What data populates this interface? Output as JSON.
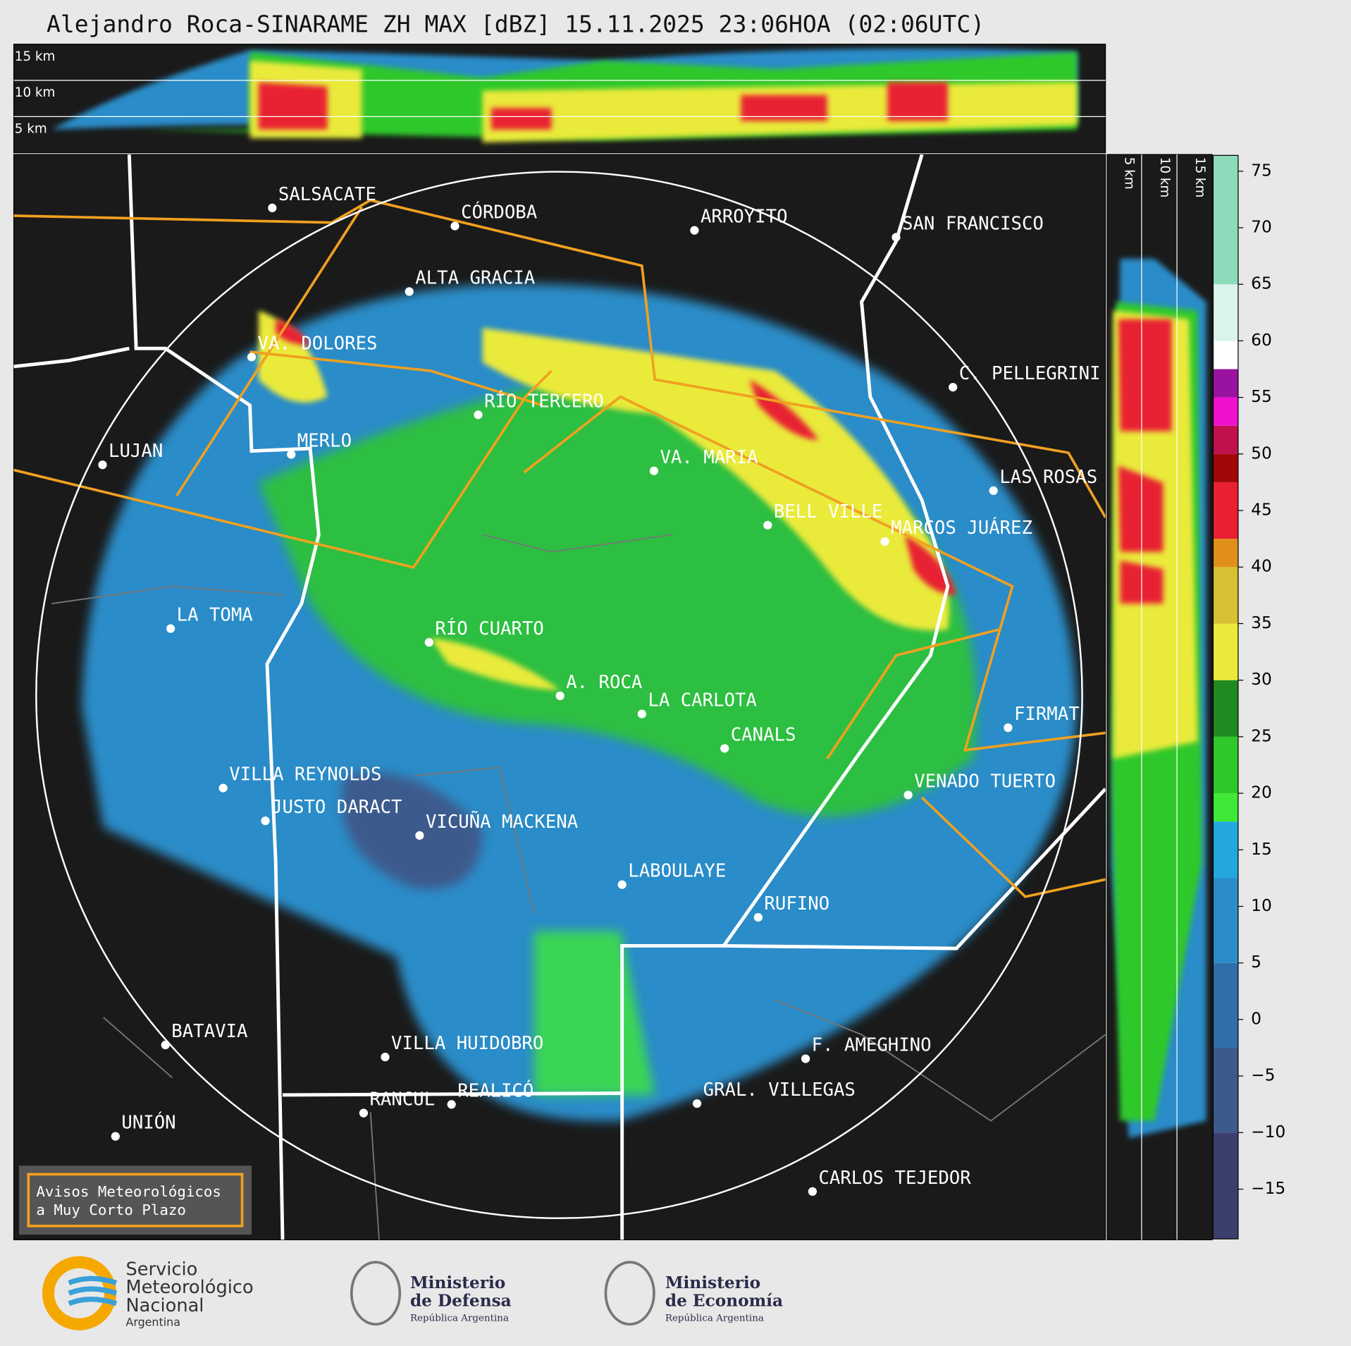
{
  "title": "Alejandro Roca-SINARAME ZH MAX [dBZ] 15.11.2025 23:06HOA (02:06UTC)",
  "top_profile": {
    "height_labels": [
      "15 km",
      "10 km",
      "5 km"
    ]
  },
  "side_profile": {
    "height_labels": [
      "5 km",
      "10 km",
      "15 km"
    ]
  },
  "cities": [
    "SALSACATE",
    "CÓRDOBA",
    "ARROYITO",
    "SAN FRANCISCO",
    "ALTA GRACIA",
    "VA. DOLORES",
    "C. PELLEGRINI",
    "RÍO TERCERO",
    "LUJAN",
    "MERLO",
    "VA. MARIA",
    "LAS ROSAS",
    "BELL VILLE",
    "MARCOS JUÁREZ",
    "LA TOMA",
    "RÍO CUARTO",
    "A. ROCA",
    "LA CARLOTA",
    "CANALS",
    "FIRMAT",
    "VILLA REYNOLDS",
    "VENADO TUERTO",
    "JUSTO DARACT",
    "VICUÑA MACKENA",
    "LABOULAYE",
    "RUFINO",
    "BATAVIA",
    "F. AMEGHINO",
    "VILLA HUIDOBRO",
    "RANCUL",
    "REALICÓ",
    "GRAL. VILLEGAS",
    "UNIÓN",
    "CARLOS TEJEDOR"
  ],
  "legend_box": [
    "Avisos Meteorológicos",
    "a Muy Corto Plazo"
  ],
  "colorbar": {
    "range": [
      -19.4,
      76.4
    ],
    "ticks": [
      {
        "value": -15,
        "label": "−15"
      },
      {
        "value": -10,
        "label": "−10"
      },
      {
        "value": -5,
        "label": "−5"
      },
      0,
      5,
      10,
      15,
      20,
      25,
      30,
      35,
      40,
      45,
      50,
      55,
      60,
      65,
      70,
      75
    ],
    "segments": [
      {
        "from": -19.4,
        "to": -10,
        "color": "#3a3f6e"
      },
      {
        "from": -10,
        "to": -2.5,
        "color": "#3c5a8c"
      },
      {
        "from": -2.5,
        "to": 5,
        "color": "#2f6ea8"
      },
      {
        "from": 5,
        "to": 12.5,
        "color": "#2a8cc8"
      },
      {
        "from": 12.5,
        "to": 17.5,
        "color": "#22a8dc"
      },
      {
        "from": 17.5,
        "to": 20,
        "color": "#40e838"
      },
      {
        "from": 20,
        "to": 25,
        "color": "#2ec82a"
      },
      {
        "from": 25,
        "to": 30,
        "color": "#1f8a22"
      },
      {
        "from": 30,
        "to": 35,
        "color": "#eaea3a"
      },
      {
        "from": 35,
        "to": 40,
        "color": "#d8c032"
      },
      {
        "from": 40,
        "to": 42.5,
        "color": "#e09018"
      },
      {
        "from": 42.5,
        "to": 47.5,
        "color": "#e82030"
      },
      {
        "from": 47.5,
        "to": 50,
        "color": "#a00808"
      },
      {
        "from": 50,
        "to": 52.5,
        "color": "#c0104e"
      },
      {
        "from": 52.5,
        "to": 55,
        "color": "#f010d0"
      },
      {
        "from": 55,
        "to": 57.5,
        "color": "#9a12a0"
      },
      {
        "from": 57.5,
        "to": 60,
        "color": "#ffffff"
      },
      {
        "from": 60,
        "to": 65,
        "color": "#d8f4ec"
      },
      {
        "from": 65,
        "to": 76.4,
        "color": "#8cdcbc"
      }
    ]
  },
  "logos": {
    "smn": [
      "Servicio",
      "Meteorológico",
      "Nacional",
      "Argentina"
    ],
    "defensa": [
      "Ministerio",
      "de Defensa",
      "República Argentina"
    ],
    "economia": [
      "Ministerio",
      "de Economía",
      "República Argentina"
    ]
  }
}
